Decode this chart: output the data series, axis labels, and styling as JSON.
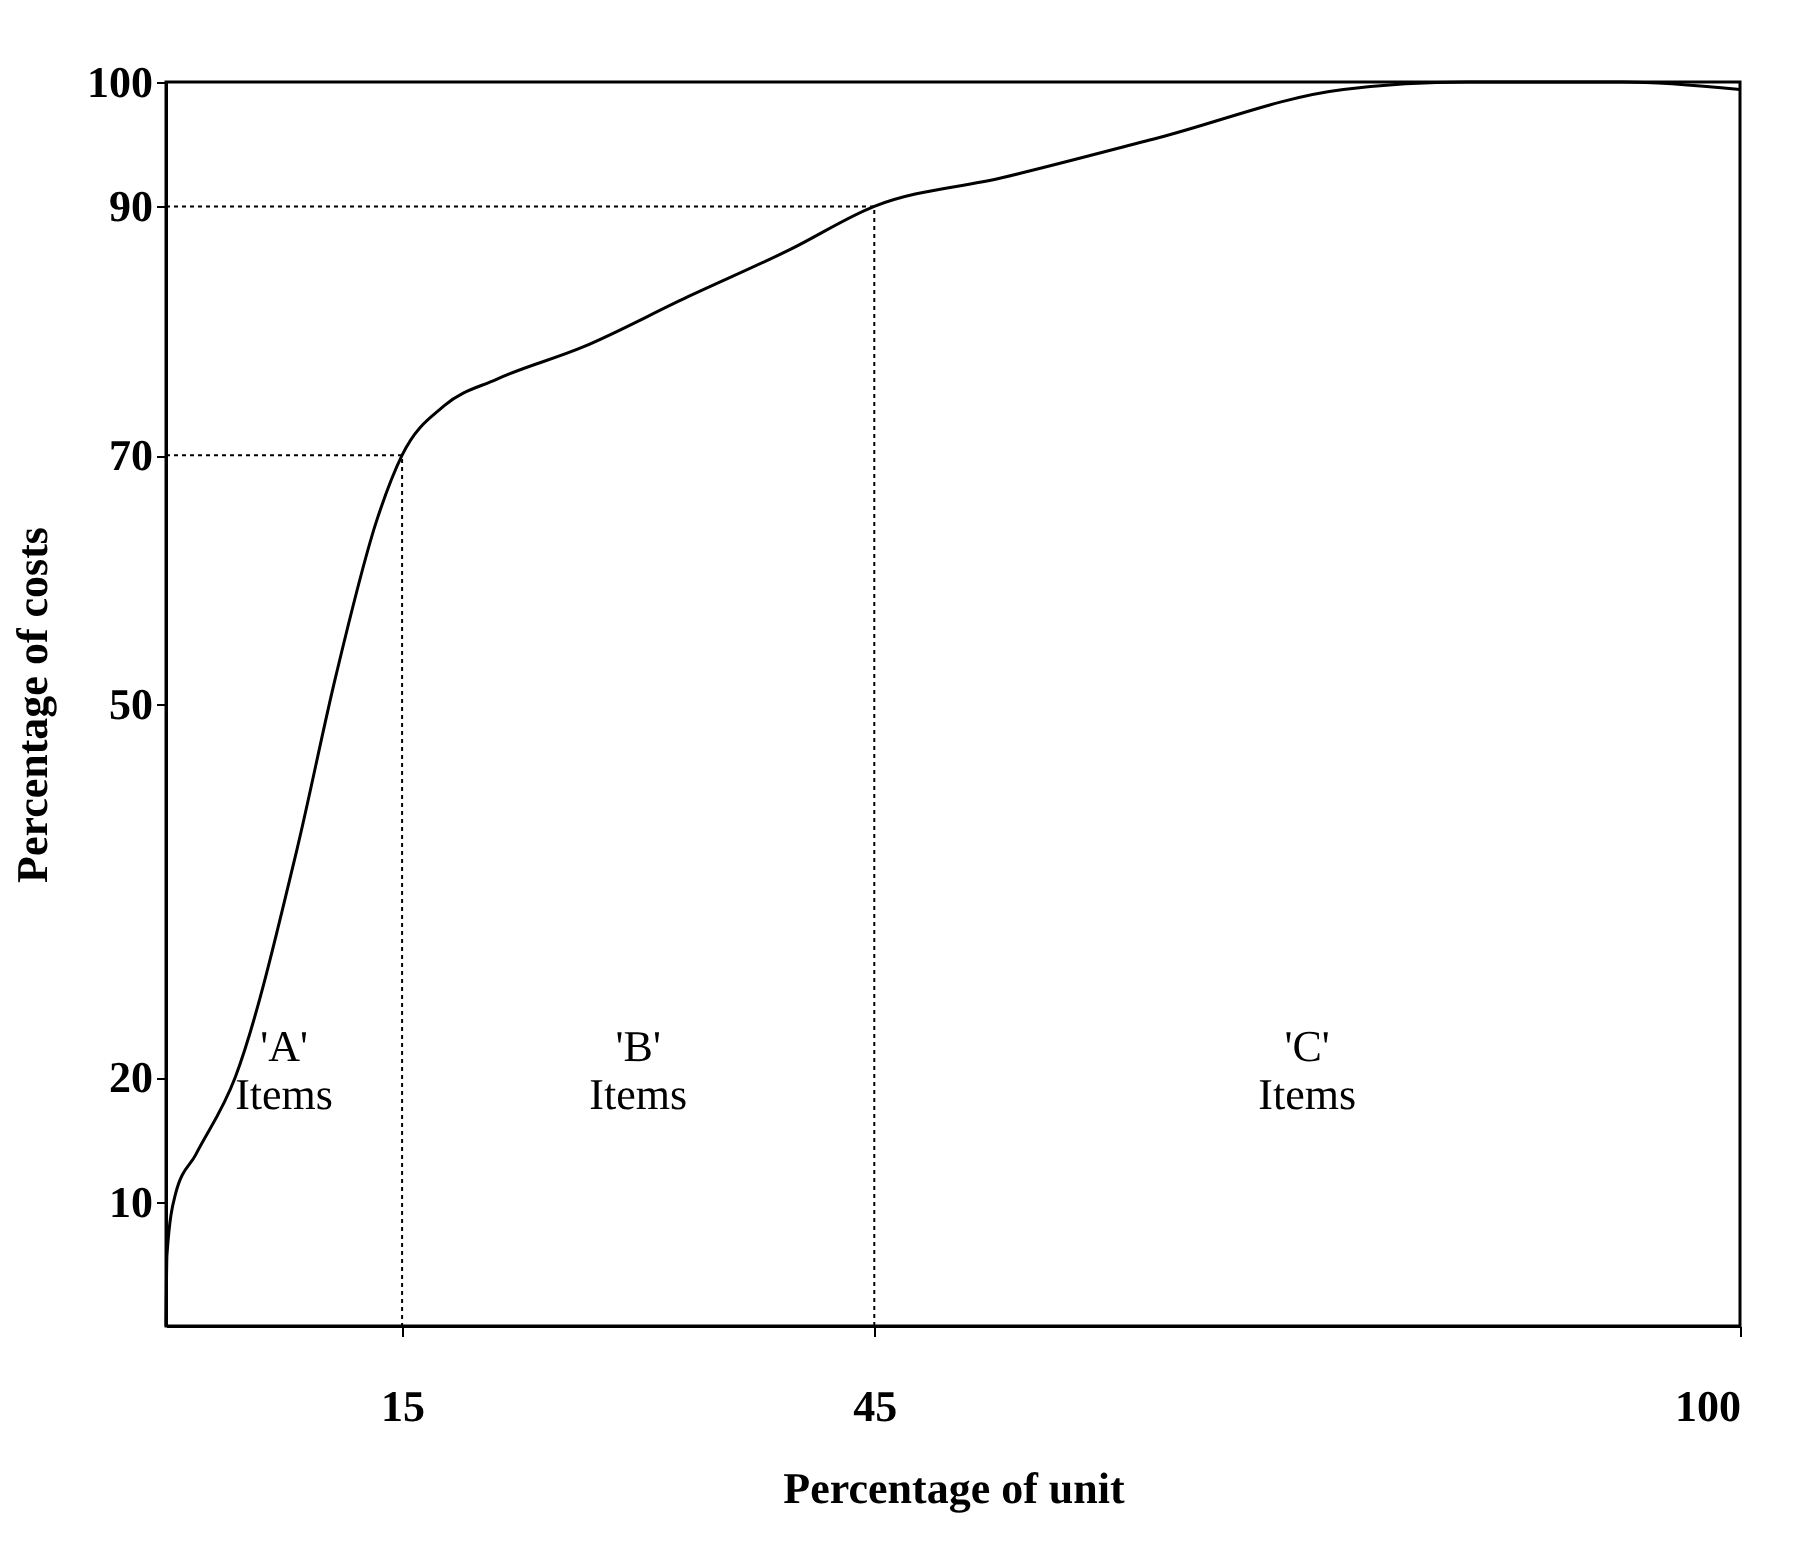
{
  "chart_data": {
    "type": "line",
    "xlabel": "Percentage of unit",
    "ylabel": "Percentage of costs",
    "xlim": [
      0,
      100
    ],
    "xticks": [
      15,
      45,
      100
    ],
    "ylim": [
      0,
      100
    ],
    "yticks": [
      10,
      20,
      50,
      70,
      90,
      100
    ],
    "grid": false,
    "marker": "none",
    "series": [
      {
        "color": "#000000",
        "line_style": "solid",
        "x": [
          0,
          0.06,
          0.6,
          1.9,
          4.4,
          8.3,
          10.8,
          13.4,
          15,
          17.7,
          21,
          26.5,
          33.1,
          39.6,
          45,
          53.1,
          63,
          74.8,
          82.7,
          92.6,
          100
        ],
        "values": [
          0,
          5.7,
          10.6,
          13.8,
          20,
          38.2,
          52.3,
          64.8,
          70,
          74,
          76.1,
          78.7,
          82.7,
          86.5,
          90,
          92.3,
          95.5,
          99.4,
          100,
          100,
          99.4
        ]
      },
      {
        "color": "#000000",
        "line_style": "dotted",
        "x": [
          0,
          15,
          15
        ],
        "values": [
          70,
          70,
          0
        ]
      },
      {
        "color": "#000000",
        "line_style": "dotted",
        "x": [
          0,
          45,
          45
        ],
        "values": [
          90,
          90,
          0
        ]
      }
    ],
    "annotations": [
      "'A'\nItems",
      "'B'\nItems",
      "'C'\nItems"
    ]
  }
}
